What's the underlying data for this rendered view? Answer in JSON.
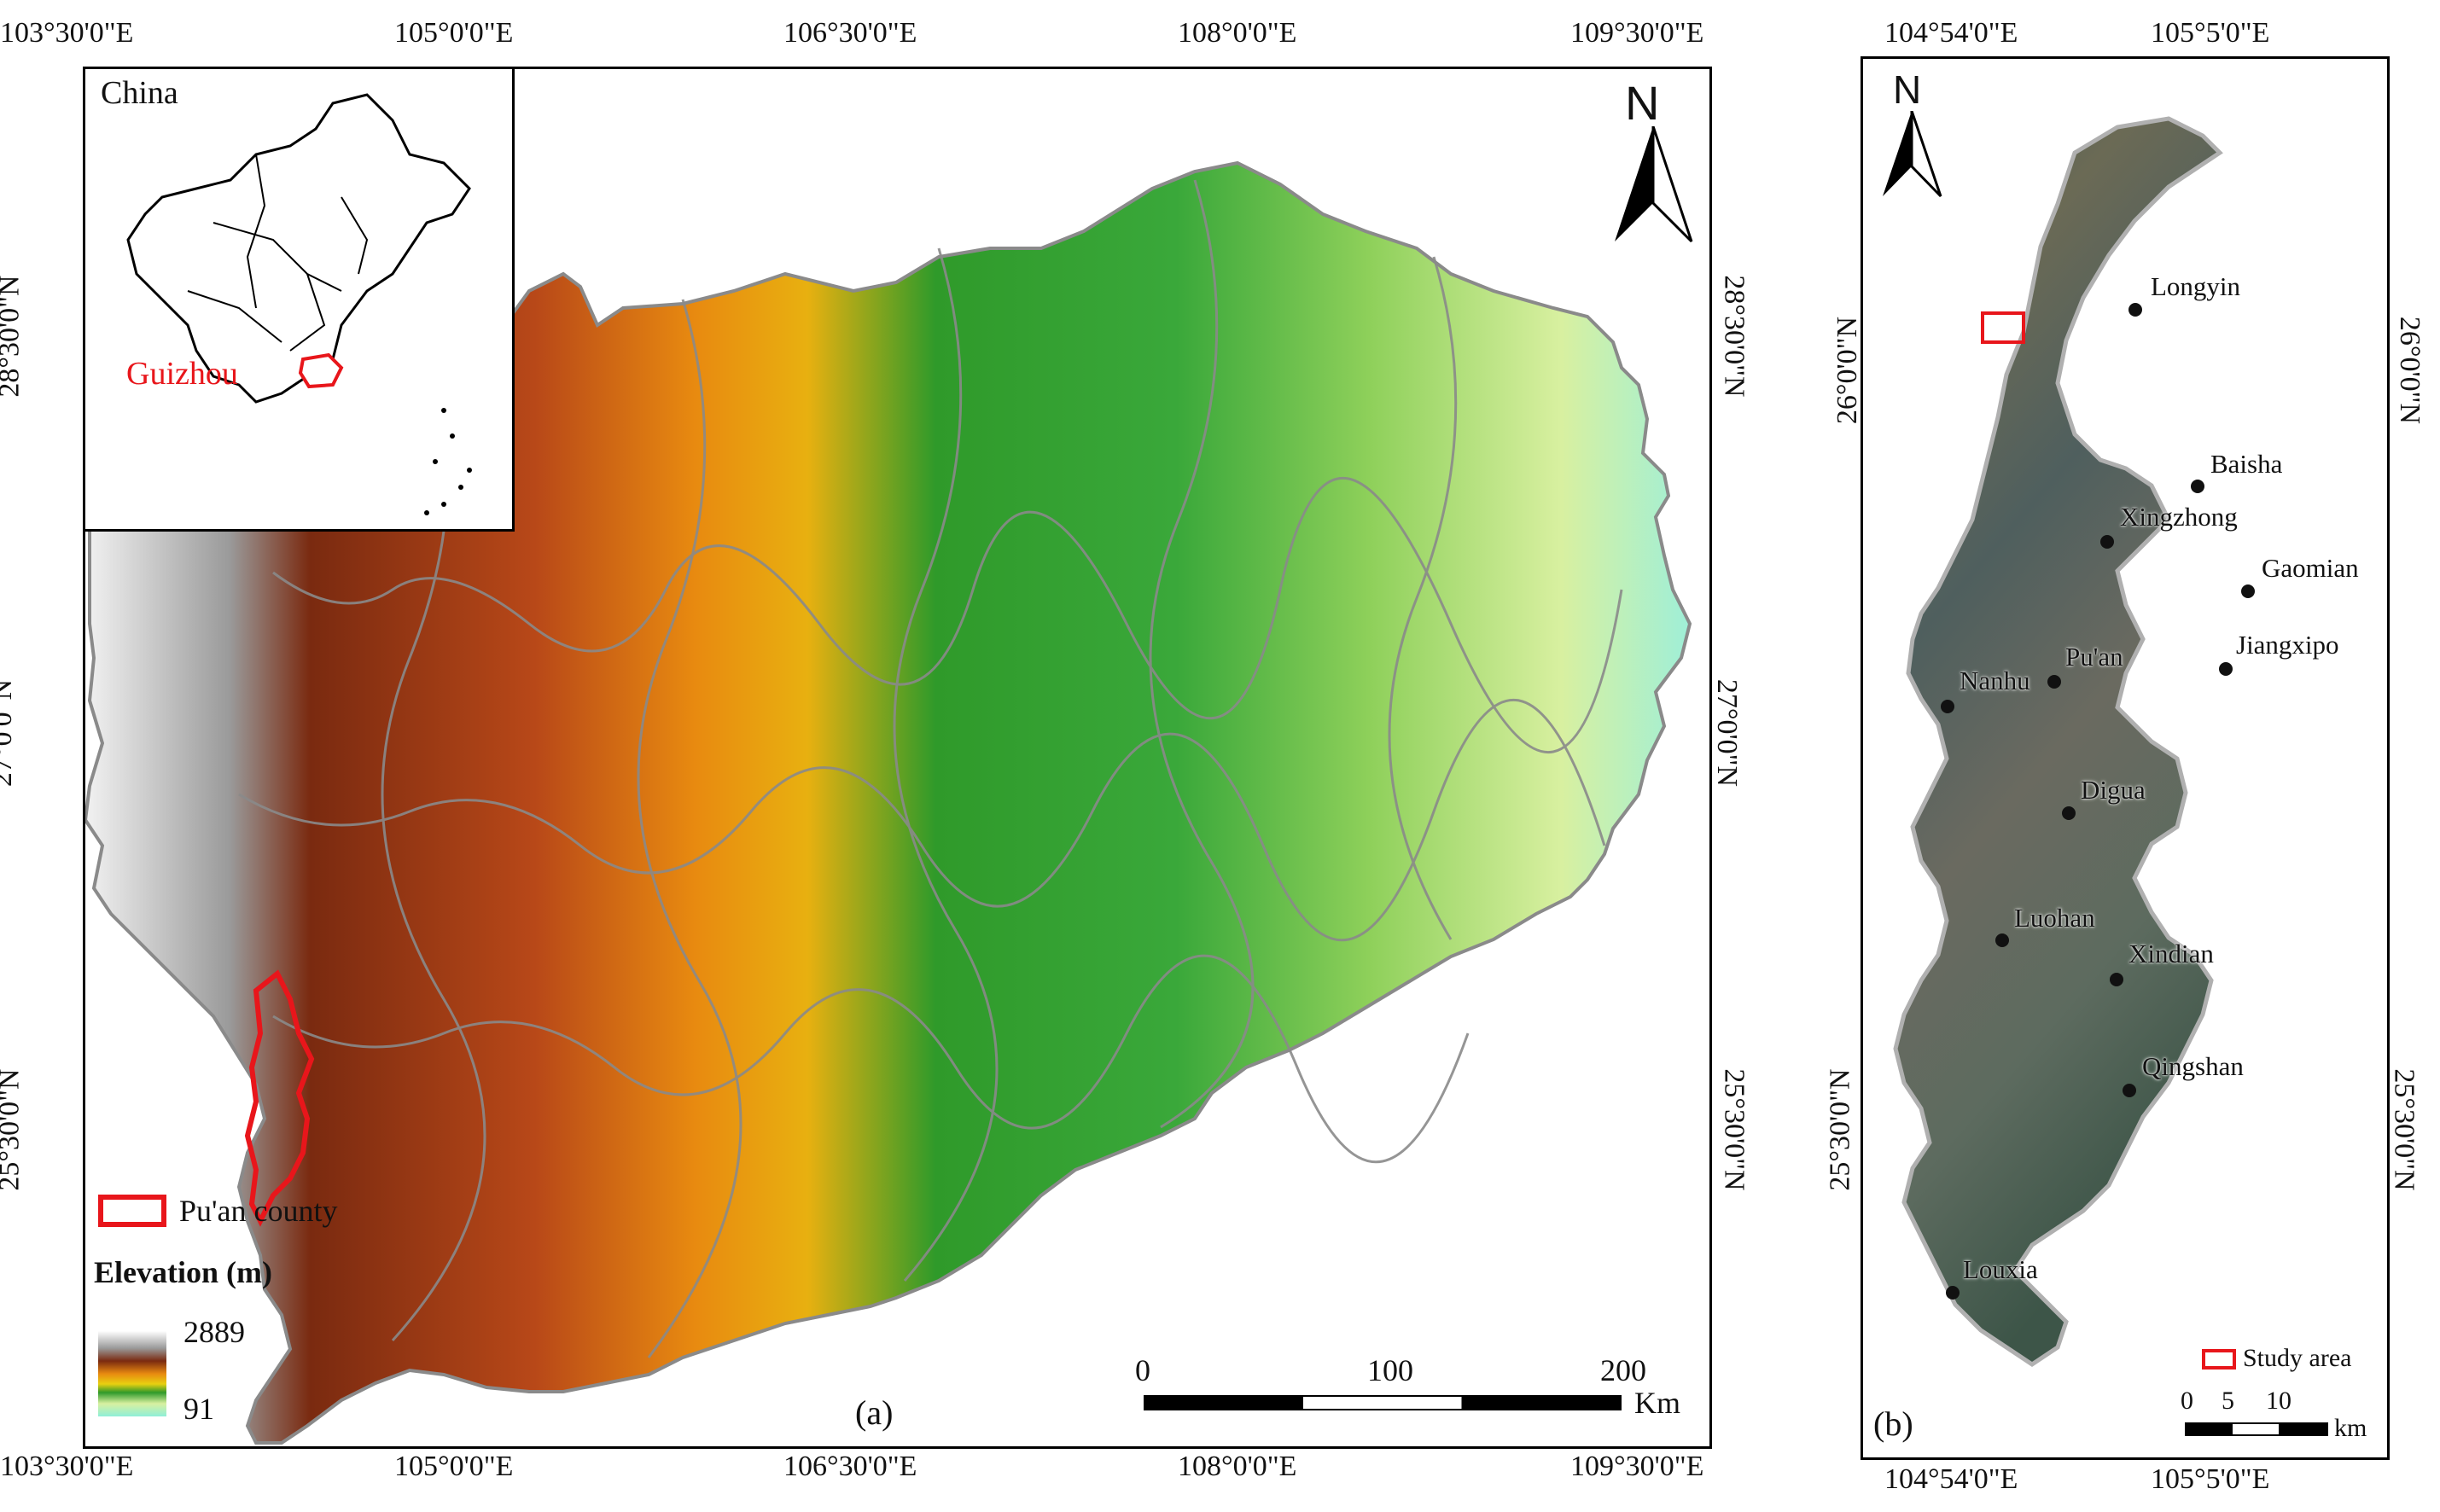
{
  "panel_a": {
    "label": "(a)",
    "top_lon_ticks": [
      "103°30'0\"E",
      "105°0'0\"E",
      "106°30'0\"E",
      "108°0'0\"E",
      "109°30'0\"E"
    ],
    "bottom_lon_ticks": [
      "103°30'0\"E",
      "105°0'0\"E",
      "106°30'0\"E",
      "108°0'0\"E",
      "109°30'0\"E"
    ],
    "left_lat_ticks": [
      "28°30'0\"N",
      "27°0'0\"N",
      "25°30'0\"N"
    ],
    "right_lat_ticks": [
      "28°30'0\"N",
      "27°0'0\"N",
      "25°30'0\"N"
    ],
    "north_label": "N",
    "inset": {
      "country_label": "China",
      "province_label": "Guizhou"
    },
    "legend": {
      "county_label": "Pu'an county",
      "elevation_title": "Elevation (m)",
      "max_value": "2889",
      "min_value": "91",
      "county_color": "#e8161b"
    },
    "scale_bar": {
      "labels": [
        "0",
        "100",
        "200"
      ],
      "unit": "Km"
    }
  },
  "panel_b": {
    "label": "(b)",
    "top_lon_ticks": [
      "104°54'0\"E",
      "105°5'0\"E"
    ],
    "bottom_lon_ticks": [
      "104°54'0\"E",
      "105°5'0\"E"
    ],
    "left_lat_ticks": [
      "26°0'0\"N",
      "25°30'0\"N"
    ],
    "right_lat_ticks": [
      "26°0'0\"N",
      "25°30'0\"N"
    ],
    "north_label": "N",
    "places": [
      "Longyin",
      "Baisha",
      "Xingzhong",
      "Gaomian",
      "Pu'an",
      "Jiangxipo",
      "Nanhu",
      "Digua",
      "Luohan",
      "Xindian",
      "Qingshan",
      "Louxia"
    ],
    "legend": {
      "study_area_label": "Study area"
    },
    "scale_bar": {
      "labels": [
        "0",
        "5",
        "10"
      ],
      "unit": "km"
    }
  },
  "colors": {
    "elevation_ramp": [
      "#ffffff",
      "#a0a0a0",
      "#7a2a10",
      "#c2561a",
      "#e89a10",
      "#2f9a2a",
      "#3fbf3f",
      "#d8f0a0",
      "#8fefd8"
    ],
    "boundary": "#8a8a8a",
    "study_area": "#e8161b"
  }
}
